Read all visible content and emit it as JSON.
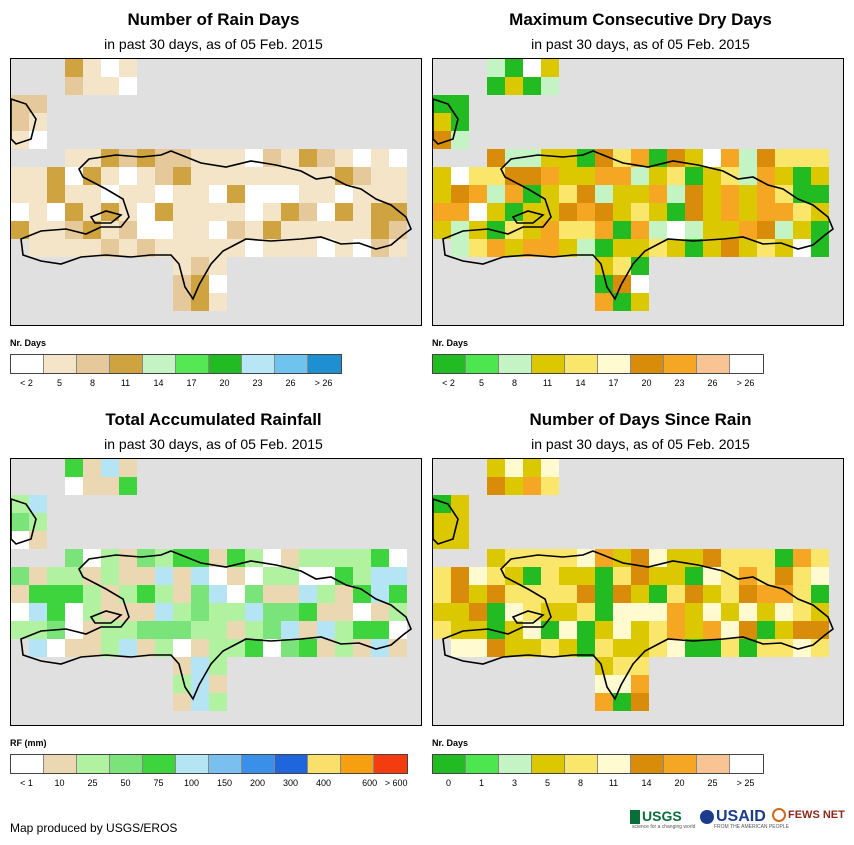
{
  "footer": {
    "credit": "Map produced by USGS/EROS"
  },
  "logos": {
    "usgs": "USGS",
    "usgs_tagline": "science for a changing world",
    "usaid": "USAID",
    "usaid_tagline": "FROM THE AMERICAN PEOPLE",
    "fews": "FEWS NET",
    "icons": [
      "usgs-logo",
      "usaid-logo",
      "fews-net-logo"
    ]
  },
  "panels": [
    {
      "id": "rain_days",
      "title": "Number of Rain Days",
      "subtitle": "in past 30 days, as of 05 Feb. 2015",
      "legend_title": "Nr. Days",
      "legend_colors": [
        "#ffffff",
        "#f4e4c8",
        "#e6c99a",
        "#cfa33f",
        "#c4f4c4",
        "#55e855",
        "#22bb22",
        "#b9e6f5",
        "#6ec3ef",
        "#1e8fd0"
      ],
      "legend_labels": [
        "< 2",
        "5",
        "8",
        "11",
        "14",
        "17",
        "20",
        "23",
        "26",
        "> 26"
      ]
    },
    {
      "id": "max_dry_days",
      "title": "Maximum Consecutive Dry Days",
      "subtitle": "in past 30 days, as of 05 Feb. 2015",
      "legend_title": "Nr. Days",
      "legend_colors": [
        "#22bb22",
        "#4ee64e",
        "#c4f4c4",
        "#dcc800",
        "#fae66b",
        "#fffad0",
        "#d98c0a",
        "#f5a623",
        "#f9c493",
        "#ffffff"
      ],
      "legend_labels": [
        "< 2",
        "5",
        "8",
        "11",
        "14",
        "17",
        "20",
        "23",
        "26",
        "> 26"
      ]
    },
    {
      "id": "total_rainfall",
      "title": "Total Accumulated Rainfall",
      "subtitle": "in past 30 days, as of 05 Feb. 2015",
      "legend_title": "RF (mm)",
      "legend_colors": [
        "#ffffff",
        "#ebd7b1",
        "#b0f2a0",
        "#7ae47a",
        "#3ed43e",
        "#b5e5f5",
        "#79bfef",
        "#3a8fe8",
        "#1f66dc",
        "#fae06b",
        "#f5a010",
        "#f53c10"
      ],
      "legend_labels": [
        "< 1",
        "10",
        "25",
        "50",
        "75",
        "100",
        "150",
        "200",
        "300",
        "400",
        "600",
        "> 600"
      ]
    },
    {
      "id": "days_since_rain",
      "title": "Number of Days Since Rain",
      "subtitle": "in past 30 days, as of 05 Feb. 2015",
      "legend_title": "Nr. Days",
      "legend_colors": [
        "#22bb22",
        "#4ee64e",
        "#c4f4c4",
        "#dcc800",
        "#fae66b",
        "#fffad0",
        "#d98c0a",
        "#f5a623",
        "#f9c493",
        "#ffffff"
      ],
      "legend_labels": [
        "0",
        "1",
        "3",
        "5",
        "8",
        "11",
        "14",
        "20",
        "25",
        "> 25"
      ]
    }
  ]
}
